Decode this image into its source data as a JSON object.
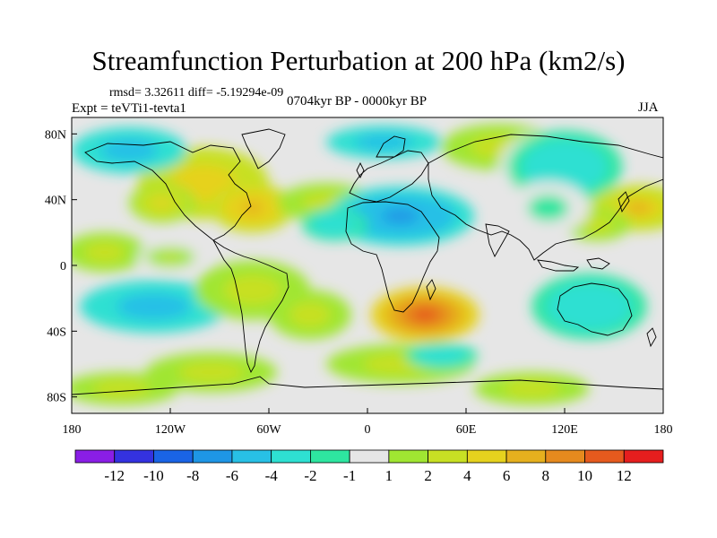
{
  "title": "Streamfunction Perturbation at 200 hPa (km2/s)",
  "subtitle": {
    "stats": "rmsd= 3.32611 diff= -5.19294e-09",
    "experiment": "Expt = teVTi1-tevta1",
    "period": "0704kyr BP - 0000kyr BP",
    "season": "JJA"
  },
  "map": {
    "projection": "cylindrical equidistant",
    "lon_range": [
      -180,
      180
    ],
    "lat_range": [
      -90,
      90
    ],
    "x_ticks": [
      {
        "value": -180,
        "label": "180"
      },
      {
        "value": -120,
        "label": "120W"
      },
      {
        "value": -60,
        "label": "60W"
      },
      {
        "value": 0,
        "label": "0"
      },
      {
        "value": 60,
        "label": "60E"
      },
      {
        "value": 120,
        "label": "120E"
      },
      {
        "value": 180,
        "label": "180"
      }
    ],
    "y_ticks": [
      {
        "value": 80,
        "label": "80N"
      },
      {
        "value": 40,
        "label": "40N"
      },
      {
        "value": 0,
        "label": "0"
      },
      {
        "value": -40,
        "label": "40S"
      },
      {
        "value": -80,
        "label": "80S"
      }
    ],
    "background_color": "#e6e6e6",
    "anomalies": [
      {
        "lon": -100,
        "lat": 50,
        "rlon": 40,
        "rlat": 22,
        "value": 5
      },
      {
        "lon": -70,
        "lat": 35,
        "rlon": 25,
        "rlat": 15,
        "value": 7
      },
      {
        "lon": -125,
        "lat": 38,
        "rlon": 20,
        "rlat": 12,
        "value": 4
      },
      {
        "lon": -25,
        "lat": 38,
        "rlon": 30,
        "rlat": 12,
        "value": 3
      },
      {
        "lon": 20,
        "lat": 30,
        "rlon": 45,
        "rlat": 18,
        "value": -7
      },
      {
        "lon": -20,
        "lat": 25,
        "rlon": 20,
        "rlat": 10,
        "value": -4
      },
      {
        "lon": 10,
        "lat": 75,
        "rlon": 35,
        "rlat": 10,
        "value": -5
      },
      {
        "lon": -145,
        "lat": 70,
        "rlon": 35,
        "rlat": 14,
        "value": -5
      },
      {
        "lon": 80,
        "lat": 72,
        "rlon": 35,
        "rlat": 14,
        "value": 3
      },
      {
        "lon": 105,
        "lat": 60,
        "rlon": 25,
        "rlat": 20,
        "value": 2
      },
      {
        "lon": 120,
        "lat": 60,
        "rlon": 35,
        "rlat": 22,
        "value": -4
      },
      {
        "lon": 165,
        "lat": 35,
        "rlon": 30,
        "rlat": 14,
        "value": 6
      },
      {
        "lon": 140,
        "lat": 25,
        "rlon": 20,
        "rlat": 10,
        "value": 3
      },
      {
        "lon": -160,
        "lat": 8,
        "rlon": 25,
        "rlat": 12,
        "value": 3
      },
      {
        "lon": -120,
        "lat": 5,
        "rlon": 20,
        "rlat": 8,
        "value": 2
      },
      {
        "lon": -130,
        "lat": -25,
        "rlon": 45,
        "rlat": 16,
        "value": -6
      },
      {
        "lon": -70,
        "lat": -15,
        "rlon": 35,
        "rlat": 18,
        "value": 3
      },
      {
        "lon": -35,
        "lat": -30,
        "rlon": 25,
        "rlat": 15,
        "value": 3
      },
      {
        "lon": 35,
        "lat": -30,
        "rlon": 33,
        "rlat": 17,
        "value": 11
      },
      {
        "lon": 20,
        "lat": -60,
        "rlon": 45,
        "rlat": 12,
        "value": 3
      },
      {
        "lon": 45,
        "lat": -55,
        "rlon": 22,
        "rlat": 8,
        "value": -4
      },
      {
        "lon": 135,
        "lat": -25,
        "rlon": 35,
        "rlat": 20,
        "value": -4
      },
      {
        "lon": 100,
        "lat": -75,
        "rlon": 35,
        "rlat": 10,
        "value": 3
      },
      {
        "lon": -95,
        "lat": -65,
        "rlon": 40,
        "rlat": 12,
        "value": 3
      },
      {
        "lon": -150,
        "lat": -75,
        "rlon": 35,
        "rlat": 10,
        "value": 3
      },
      {
        "lon": 110,
        "lat": 35,
        "rlon": 25,
        "rlat": 16,
        "value": -1.5
      }
    ]
  },
  "colorbar": {
    "colors": [
      "#8a1ee6",
      "#3432e0",
      "#1a64e6",
      "#1e96e6",
      "#28c0e6",
      "#2ee0d2",
      "#2ee6a0",
      "#e6e6e6",
      "#a0e632",
      "#c8e024",
      "#e6d21e",
      "#e6b01e",
      "#e68a1e",
      "#e65a1e",
      "#e61e1e"
    ],
    "labels": [
      "-12",
      "-10",
      "-8",
      "-6",
      "-4",
      "-2",
      "-1",
      "1",
      "2",
      "4",
      "6",
      "8",
      "10",
      "12"
    ]
  }
}
